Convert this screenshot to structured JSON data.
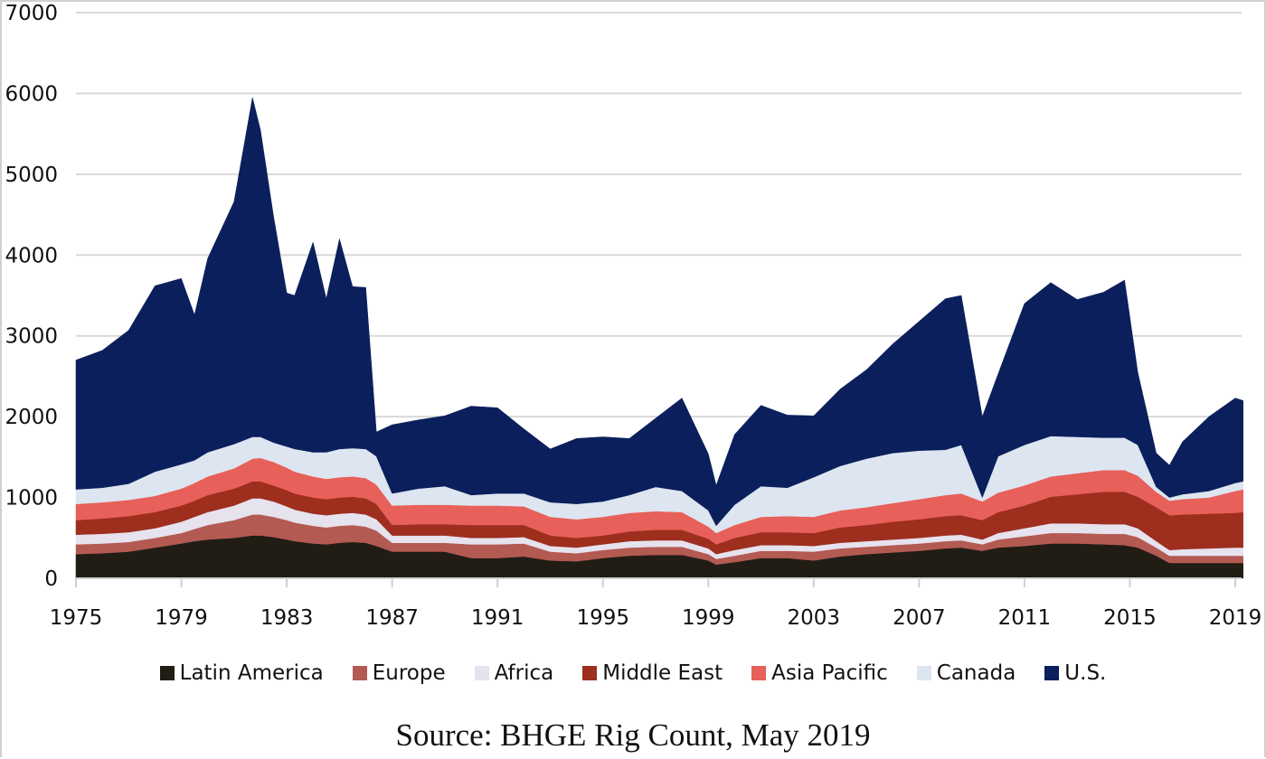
{
  "chart_data": {
    "type": "area",
    "stacked": true,
    "title": "",
    "xlabel": "",
    "ylabel": "",
    "xlim": [
      1975,
      2019.4
    ],
    "ylim": [
      0,
      7000
    ],
    "grid": true,
    "legend_position": "bottom",
    "y_ticks": [
      "0",
      "1000",
      "2000",
      "3000",
      "4000",
      "5000",
      "6000",
      "7000"
    ],
    "x_ticks": [
      "1975",
      "1979",
      "1983",
      "1987",
      "1991",
      "1995",
      "1999",
      "2003",
      "2007",
      "2011",
      "2015",
      "2019"
    ],
    "x": [
      1975,
      1976,
      1977,
      1978,
      1979,
      1979.5,
      1980,
      1981,
      1981.7,
      1982,
      1982.5,
      1983,
      1983.3,
      1984,
      1984.5,
      1985,
      1985.5,
      1986,
      1986.4,
      1987,
      1988,
      1989,
      1990,
      1991,
      1992,
      1993,
      1994,
      1995,
      1996,
      1997,
      1998,
      1999,
      1999.3,
      2000,
      2001,
      2002,
      2003,
      2004,
      2005,
      2006,
      2007,
      2008,
      2008.6,
      2009.4,
      2010,
      2011,
      2012,
      2013,
      2014,
      2014.8,
      2015.3,
      2016,
      2016.5,
      2017,
      2018,
      2019,
      2019.3
    ],
    "series": [
      {
        "name": "Latin America",
        "color": "#211d15",
        "values": [
          300,
          310,
          330,
          380,
          430,
          460,
          480,
          500,
          530,
          530,
          510,
          480,
          460,
          430,
          420,
          440,
          450,
          440,
          400,
          330,
          330,
          330,
          250,
          250,
          270,
          220,
          210,
          250,
          280,
          290,
          290,
          220,
          170,
          200,
          250,
          250,
          220,
          270,
          300,
          320,
          340,
          370,
          380,
          340,
          380,
          400,
          430,
          430,
          420,
          410,
          380,
          280,
          190,
          190,
          190,
          190,
          190
        ]
      },
      {
        "name": "Europe",
        "color": "#b35a52",
        "values": [
          120,
          120,
          120,
          120,
          130,
          150,
          180,
          220,
          260,
          260,
          250,
          240,
          230,
          220,
          210,
          210,
          210,
          200,
          190,
          110,
          110,
          110,
          170,
          170,
          160,
          110,
          100,
          100,
          100,
          100,
          100,
          80,
          70,
          80,
          90,
          90,
          110,
          100,
          90,
          90,
          90,
          90,
          90,
          80,
          100,
          120,
          130,
          130,
          130,
          140,
          130,
          100,
          90,
          90,
          90,
          90,
          90
        ]
      },
      {
        "name": "Africa",
        "color": "#e6e2ee",
        "values": [
          120,
          120,
          120,
          120,
          140,
          150,
          160,
          180,
          200,
          200,
          190,
          170,
          160,
          150,
          150,
          150,
          150,
          150,
          140,
          90,
          90,
          90,
          80,
          80,
          80,
          70,
          70,
          70,
          80,
          80,
          80,
          70,
          60,
          70,
          70,
          70,
          70,
          70,
          70,
          70,
          70,
          70,
          70,
          60,
          80,
          100,
          120,
          120,
          120,
          120,
          110,
          80,
          70,
          80,
          90,
          100,
          100
        ]
      },
      {
        "name": "Middle East",
        "color": "#9e2e1e",
        "values": [
          180,
          190,
          200,
          200,
          200,
          200,
          210,
          210,
          210,
          210,
          200,
          200,
          200,
          200,
          200,
          200,
          200,
          200,
          190,
          130,
          140,
          140,
          160,
          160,
          150,
          130,
          120,
          110,
          120,
          130,
          130,
          120,
          120,
          150,
          160,
          160,
          160,
          190,
          200,
          220,
          230,
          240,
          240,
          240,
          260,
          280,
          330,
          360,
          400,
          400,
          390,
          420,
          430,
          430,
          430,
          430,
          440
        ]
      },
      {
        "name": "Asia Pacific",
        "color": "#e8605a",
        "values": [
          200,
          200,
          200,
          200,
          210,
          220,
          230,
          250,
          280,
          290,
          290,
          280,
          270,
          260,
          250,
          250,
          250,
          250,
          240,
          240,
          240,
          240,
          240,
          240,
          230,
          230,
          230,
          230,
          230,
          230,
          220,
          150,
          140,
          160,
          190,
          200,
          200,
          210,
          220,
          230,
          250,
          260,
          270,
          230,
          240,
          250,
          250,
          260,
          270,
          270,
          260,
          190,
          180,
          190,
          200,
          270,
          280
        ]
      },
      {
        "name": "Canada",
        "color": "#dde5f0",
        "values": [
          180,
          180,
          200,
          300,
          300,
          280,
          300,
          300,
          270,
          260,
          240,
          260,
          280,
          300,
          330,
          350,
          350,
          360,
          350,
          150,
          200,
          230,
          130,
          150,
          160,
          180,
          190,
          190,
          220,
          300,
          260,
          200,
          90,
          250,
          380,
          350,
          490,
          550,
          600,
          620,
          600,
          560,
          600,
          50,
          450,
          500,
          500,
          450,
          400,
          400,
          380,
          60,
          40,
          60,
          80,
          100,
          100
        ]
      },
      {
        "name": "U.S.",
        "color": "#0b1f5c",
        "values": [
          1600,
          1700,
          1900,
          2300,
          2300,
          1800,
          2400,
          3000,
          4200,
          3800,
          2800,
          1900,
          1900,
          2600,
          1900,
          2600,
          2000,
          2000,
          300,
          850,
          850,
          870,
          1100,
          1060,
          800,
          660,
          810,
          800,
          700,
          850,
          1150,
          700,
          500,
          870,
          1000,
          900,
          760,
          950,
          1100,
          1350,
          1600,
          1870,
          1850,
          1000,
          1020,
          1750,
          1900,
          1700,
          1800,
          1950,
          900,
          420,
          400,
          650,
          920,
          1050,
          1000
        ]
      }
    ]
  },
  "legend": {
    "items": [
      {
        "label": "Latin America",
        "color": "#211d15"
      },
      {
        "label": "Europe",
        "color": "#b35a52"
      },
      {
        "label": "Africa",
        "color": "#e6e2ee"
      },
      {
        "label": "Middle East",
        "color": "#9e2e1e"
      },
      {
        "label": "Asia Pacific",
        "color": "#e8605a"
      },
      {
        "label": "Canada",
        "color": "#dde5f0"
      },
      {
        "label": "U.S.",
        "color": "#0b1f5c"
      }
    ]
  },
  "source": "Source: BHGE Rig Count, May 2019"
}
